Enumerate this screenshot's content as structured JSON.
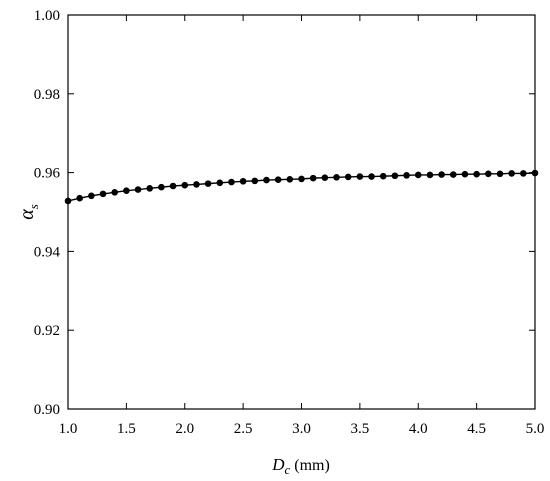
{
  "chart_data": {
    "type": "line",
    "title": "",
    "xlabel": "D",
    "xlabel_subscript": "c",
    "xlabel_unit": "(mm)",
    "ylabel": "α",
    "ylabel_subscript": "s",
    "xlim": [
      1.0,
      5.0
    ],
    "ylim": [
      0.9,
      1.0
    ],
    "xticks": [
      1.0,
      1.5,
      2.0,
      2.5,
      3.0,
      3.5,
      4.0,
      4.5,
      5.0
    ],
    "xtick_labels": [
      "1.0",
      "1.5",
      "2.0",
      "2.5",
      "3.0",
      "3.5",
      "4.0",
      "4.5",
      "5.0"
    ],
    "yticks": [
      0.9,
      0.92,
      0.94,
      0.96,
      0.98,
      1.0
    ],
    "ytick_labels": [
      "0.90",
      "0.92",
      "0.94",
      "0.96",
      "0.98",
      "1.00"
    ],
    "grid": false,
    "series_color": "#000000",
    "series": [
      {
        "marker": "circle",
        "x": [
          1.0,
          1.1,
          1.2,
          1.3,
          1.4,
          1.5,
          1.6,
          1.7,
          1.8,
          1.9,
          2.0,
          2.1,
          2.2,
          2.3,
          2.4,
          2.5,
          2.6,
          2.7,
          2.8,
          2.9,
          3.0,
          3.1,
          3.2,
          3.3,
          3.4,
          3.5,
          3.6,
          3.7,
          3.8,
          3.9,
          4.0,
          4.1,
          4.2,
          4.3,
          4.4,
          4.5,
          4.6,
          4.7,
          4.8,
          4.9,
          5.0
        ],
        "y": [
          0.9528,
          0.9535,
          0.9541,
          0.9546,
          0.955,
          0.9554,
          0.9557,
          0.956,
          0.9563,
          0.9566,
          0.9568,
          0.957,
          0.9572,
          0.9574,
          0.9576,
          0.9578,
          0.9579,
          0.9581,
          0.9582,
          0.9583,
          0.9584,
          0.9586,
          0.9587,
          0.9588,
          0.9589,
          0.959,
          0.959,
          0.9591,
          0.9592,
          0.9593,
          0.9594,
          0.9594,
          0.9595,
          0.9595,
          0.9596,
          0.9596,
          0.9597,
          0.9597,
          0.9598,
          0.9598,
          0.9599
        ]
      }
    ]
  }
}
